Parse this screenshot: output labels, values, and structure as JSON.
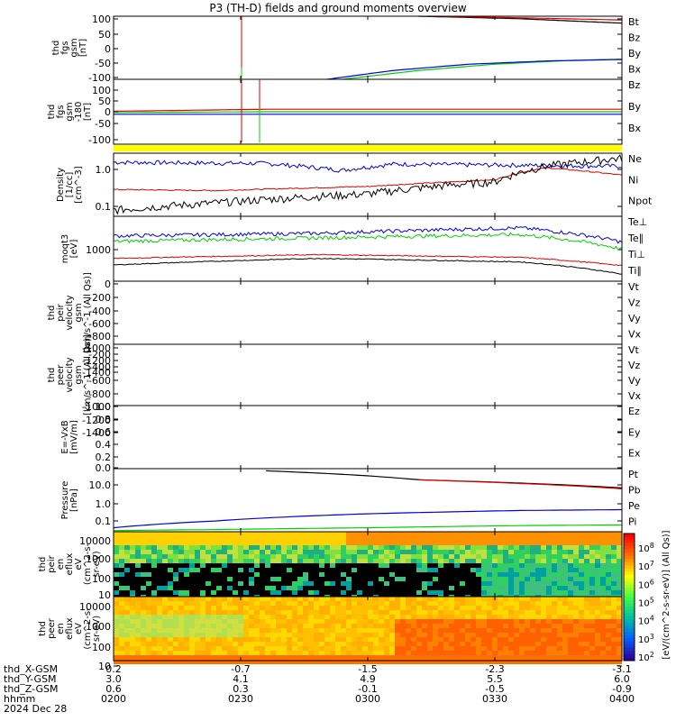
{
  "title": "P3 (TH-D) fields and ground moments overview",
  "colors": {
    "black": "#000000",
    "red": "#e00000",
    "green": "#00d000",
    "blue": "#0000e0",
    "yellow": "#ffff00"
  },
  "chart_data": [
    {
      "type": "line",
      "panel": "fgs",
      "ylabel_lines": [
        "thd",
        "fgs",
        "gsm",
        "[nT]"
      ],
      "ylim": [
        -100,
        100
      ],
      "yticks": [
        "100",
        "50",
        "0",
        "-50",
        "-100"
      ],
      "legend": [
        "Bt",
        "Bz",
        "By",
        "Bx"
      ],
      "series": [
        {
          "name": "Bt",
          "color": "black",
          "x": [
            0.6,
            0.8,
            1.0
          ],
          "y": [
            100,
            92,
            78
          ]
        },
        {
          "name": "Bz",
          "color": "red",
          "x": [
            0.62,
            0.8,
            1.0
          ],
          "y": [
            100,
            95,
            88
          ]
        },
        {
          "name": "By",
          "color": "green",
          "x": [
            0.45,
            0.6,
            0.75,
            0.9,
            1.0
          ],
          "y": [
            -100,
            -72,
            -52,
            -40,
            -36
          ]
        },
        {
          "name": "Bx",
          "color": "blue",
          "x": [
            0.42,
            0.55,
            0.7,
            0.85,
            1.0
          ],
          "y": [
            -100,
            -72,
            -52,
            -42,
            -37
          ]
        }
      ]
    },
    {
      "type": "line",
      "panel": "fgs-dsl",
      "ylabel_lines": [
        "thd",
        "fgs",
        "gsm",
        "-180",
        "[nT]"
      ],
      "ylim": [
        -130,
        130
      ],
      "yticks": [
        "100",
        "50",
        "0",
        "-50",
        "-100"
      ],
      "legend": [
        "Bz",
        "By",
        "Bx"
      ],
      "series": [
        {
          "name": "Bz",
          "color": "red",
          "x": [
            0,
            0.3,
            1.0
          ],
          "y": [
            2,
            10,
            10
          ]
        },
        {
          "name": "By",
          "color": "green",
          "x": [
            0,
            0.3,
            1.0
          ],
          "y": [
            -3,
            0,
            0
          ]
        },
        {
          "name": "Bx",
          "color": "blue",
          "x": [
            0,
            1.0
          ],
          "y": [
            -10,
            -10
          ]
        }
      ]
    },
    {
      "type": "line",
      "panel": "density",
      "ylabel_lines": [
        "Density",
        "[1/cc]",
        "[cm^-3]"
      ],
      "ylim": [
        0.07,
        2.5
      ],
      "yticks": [
        "1.0",
        "0.1"
      ],
      "legend": [
        "Ne",
        "Ni",
        "Npot"
      ],
      "series": [
        {
          "name": "Npot",
          "color": "blue",
          "x": [
            0,
            0.3,
            0.45,
            0.55,
            1.0
          ],
          "y": [
            1.5,
            1.4,
            0.95,
            1.35,
            1.2
          ]
        },
        {
          "name": "Ne",
          "color": "red",
          "x": [
            0,
            0.2,
            0.5,
            0.75,
            0.85,
            1.0
          ],
          "y": [
            0.32,
            0.3,
            0.38,
            0.55,
            1.1,
            0.72
          ]
        },
        {
          "name": "Ni",
          "color": "black",
          "x": [
            0,
            0.2,
            0.5,
            0.75,
            0.85,
            1.0
          ],
          "y": [
            0.1,
            0.15,
            0.25,
            0.5,
            1.2,
            1.9
          ]
        }
      ]
    },
    {
      "type": "line",
      "panel": "temperature",
      "ylabel_lines": [
        "moqt3",
        "[eV]"
      ],
      "ylim": [
        150,
        12000
      ],
      "yticks": [
        "1000"
      ],
      "legend": [
        "Te⊥",
        "Te∥",
        "Ti⊥",
        "Ti∥"
      ],
      "series": [
        {
          "name": "Ti⊥",
          "color": "blue",
          "x": [
            0,
            0.4,
            0.8,
            1.0
          ],
          "y": [
            3200,
            3800,
            5500,
            2100
          ]
        },
        {
          "name": "Ti∥",
          "color": "green",
          "x": [
            0,
            0.4,
            0.8,
            1.0
          ],
          "y": [
            2200,
            2800,
            3500,
            1300
          ]
        },
        {
          "name": "Te⊥",
          "color": "red",
          "x": [
            0,
            0.4,
            0.8,
            1.0
          ],
          "y": [
            700,
            900,
            750,
            430
          ]
        },
        {
          "name": "Te∥",
          "color": "black",
          "x": [
            0,
            0.4,
            0.8,
            1.0
          ],
          "y": [
            450,
            700,
            550,
            240
          ]
        }
      ]
    },
    {
      "type": "line",
      "panel": "peir-velocity",
      "ylabel_lines": [
        "thd",
        "peir",
        "velocity",
        "gsm",
        "[km/s^-1 (All Qs)]"
      ],
      "ylim": [
        -1400,
        0
      ],
      "yticks": [
        "0",
        "-200",
        "-400",
        "-600",
        "-800",
        "-1000",
        "-1200",
        "-1400"
      ],
      "legend": [
        "Vt",
        "Vz",
        "Vy",
        "Vx"
      ],
      "series": []
    },
    {
      "type": "line",
      "panel": "peer-velocity",
      "ylabel_lines": [
        "thd",
        "peer",
        "velocity",
        "gsm",
        "[km/s^-1 (All Qs)]"
      ],
      "ylim": [
        -1400,
        0
      ],
      "yticks": [
        "-200",
        "-400",
        "-600",
        "-800",
        "-1000",
        "-1200",
        "-1400"
      ],
      "legend": [
        "Vt",
        "Vz",
        "Vy",
        "Vx"
      ],
      "series": []
    },
    {
      "type": "line",
      "panel": "efield",
      "ylabel_lines": [
        "E=-VxB",
        "[mV/m]"
      ],
      "ylim": [
        0,
        1
      ],
      "yticks": [
        "1.0",
        "0.8",
        "0.6",
        "0.4",
        "0.2",
        "0.0"
      ],
      "legend": [
        "Ez",
        "Ey",
        "Ex"
      ],
      "series": []
    },
    {
      "type": "line",
      "panel": "pressure",
      "ylabel_lines": [
        "Pressure",
        "[nPa]"
      ],
      "ylim": [
        0.04,
        25
      ],
      "yticks": [
        "10.0",
        "1.0",
        "0.1"
      ],
      "legend": [
        "Pt",
        "Pb",
        "Pe",
        "Pi"
      ],
      "series": [
        {
          "name": "Pt",
          "color": "black",
          "x": [
            0.3,
            0.6,
            1.0
          ],
          "y": [
            20,
            8,
            3.5
          ]
        },
        {
          "name": "Pb",
          "color": "red",
          "x": [
            0.6,
            0.8,
            1.0
          ],
          "y": [
            8,
            5.5,
            3.2
          ]
        },
        {
          "name": "Pi",
          "color": "blue",
          "x": [
            0,
            0.2,
            0.5,
            0.8,
            1.0
          ],
          "y": [
            0.06,
            0.12,
            0.25,
            0.35,
            0.38
          ]
        },
        {
          "name": "Pe",
          "color": "green",
          "x": [
            0,
            0.2,
            0.5,
            0.8,
            1.0
          ],
          "y": [
            0.045,
            0.05,
            0.06,
            0.075,
            0.08
          ]
        }
      ]
    },
    {
      "type": "heatmap",
      "panel": "peir-spectrogram",
      "ylabel_lines": [
        "thd",
        "peir",
        "en",
        "eflux",
        "eV",
        "(cm^2-s-",
        "sr-eV)"
      ],
      "yticks": [
        "10000",
        "1000",
        "100",
        "10"
      ]
    },
    {
      "type": "heatmap",
      "panel": "peer-spectrogram",
      "ylabel_lines": [
        "thd",
        "peer",
        "en",
        "eflux",
        "eV",
        "(cm^2-s-",
        "sr-eV)"
      ],
      "yticks": [
        "10000",
        "1000",
        "100",
        "10"
      ]
    }
  ],
  "colorbar": {
    "label": "[eV/(cm^2-s-sr-eV)] (All Qs)]",
    "ticks": [
      "10^8",
      "10^7",
      "10^6",
      "10^5",
      "10^4",
      "10^3",
      "10^2"
    ]
  },
  "xaxis": {
    "rows": [
      {
        "label": "thd_X-GSM",
        "values": [
          "0.2",
          "-0.7",
          "-1.5",
          "-2.3",
          "-3.1"
        ]
      },
      {
        "label": "thd_Y-GSM",
        "values": [
          "3.0",
          "4.1",
          "4.9",
          "5.5",
          "6.0"
        ]
      },
      {
        "label": "thd_Z-GSM",
        "values": [
          "0.6",
          "0.3",
          "-0.1",
          "-0.5",
          "-0.9"
        ]
      },
      {
        "label": "hhmm",
        "values": [
          "0200",
          "0230",
          "0300",
          "0330",
          "0400"
        ]
      }
    ],
    "date": "2024 Dec 28"
  }
}
